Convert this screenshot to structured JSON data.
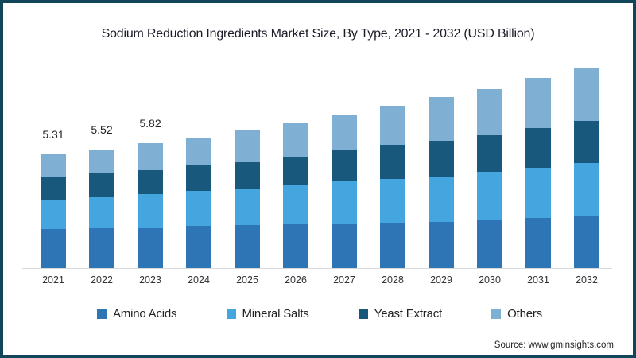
{
  "title": "Sodium Reduction Ingredients Market Size, By Type, 2021 - 2032 (USD Billion)",
  "source": "Source: www.gminsights.com",
  "frame": {
    "border_color": "#10455A",
    "background": "#FFFFFF",
    "axis_line_color": "#D9D9D9"
  },
  "chart_data": {
    "type": "bar",
    "stacked": true,
    "unit": "USD Billion",
    "title": "Sodium Reduction Ingredients Market Size, By Type, 2021 - 2032 (USD Billion)",
    "xlabel": "",
    "ylabel": "",
    "ylim": [
      0,
      10
    ],
    "grid": false,
    "legend_position": "bottom",
    "categories": [
      "2021",
      "2022",
      "2023",
      "2024",
      "2025",
      "2026",
      "2027",
      "2028",
      "2029",
      "2030",
      "2031",
      "2032"
    ],
    "series": [
      {
        "name": "Amino Acids",
        "color": "#2E75B6",
        "values": [
          1.82,
          1.84,
          1.88,
          1.95,
          1.99,
          2.04,
          2.08,
          2.13,
          2.16,
          2.24,
          2.32,
          2.46
        ]
      },
      {
        "name": "Mineral Salts",
        "color": "#45A5DF",
        "values": [
          1.36,
          1.45,
          1.56,
          1.63,
          1.7,
          1.83,
          1.95,
          2.03,
          2.1,
          2.23,
          2.35,
          2.44
        ]
      },
      {
        "name": "Yeast Extract",
        "color": "#17587C",
        "values": [
          1.07,
          1.11,
          1.12,
          1.2,
          1.24,
          1.32,
          1.46,
          1.58,
          1.67,
          1.72,
          1.85,
          1.96
        ]
      },
      {
        "name": "Others",
        "color": "#7FAFD3",
        "values": [
          1.06,
          1.12,
          1.26,
          1.3,
          1.5,
          1.6,
          1.67,
          1.81,
          2.02,
          2.16,
          2.32,
          2.44
        ]
      }
    ],
    "totals": [
      5.31,
      5.52,
      5.82,
      6.08,
      6.43,
      6.79,
      7.16,
      7.55,
      7.95,
      8.35,
      8.84,
      9.3
    ],
    "data_labels": [
      "5.31",
      "5.52",
      "5.82",
      "",
      "",
      "",
      "",
      "",
      "",
      "",
      "",
      ""
    ]
  }
}
